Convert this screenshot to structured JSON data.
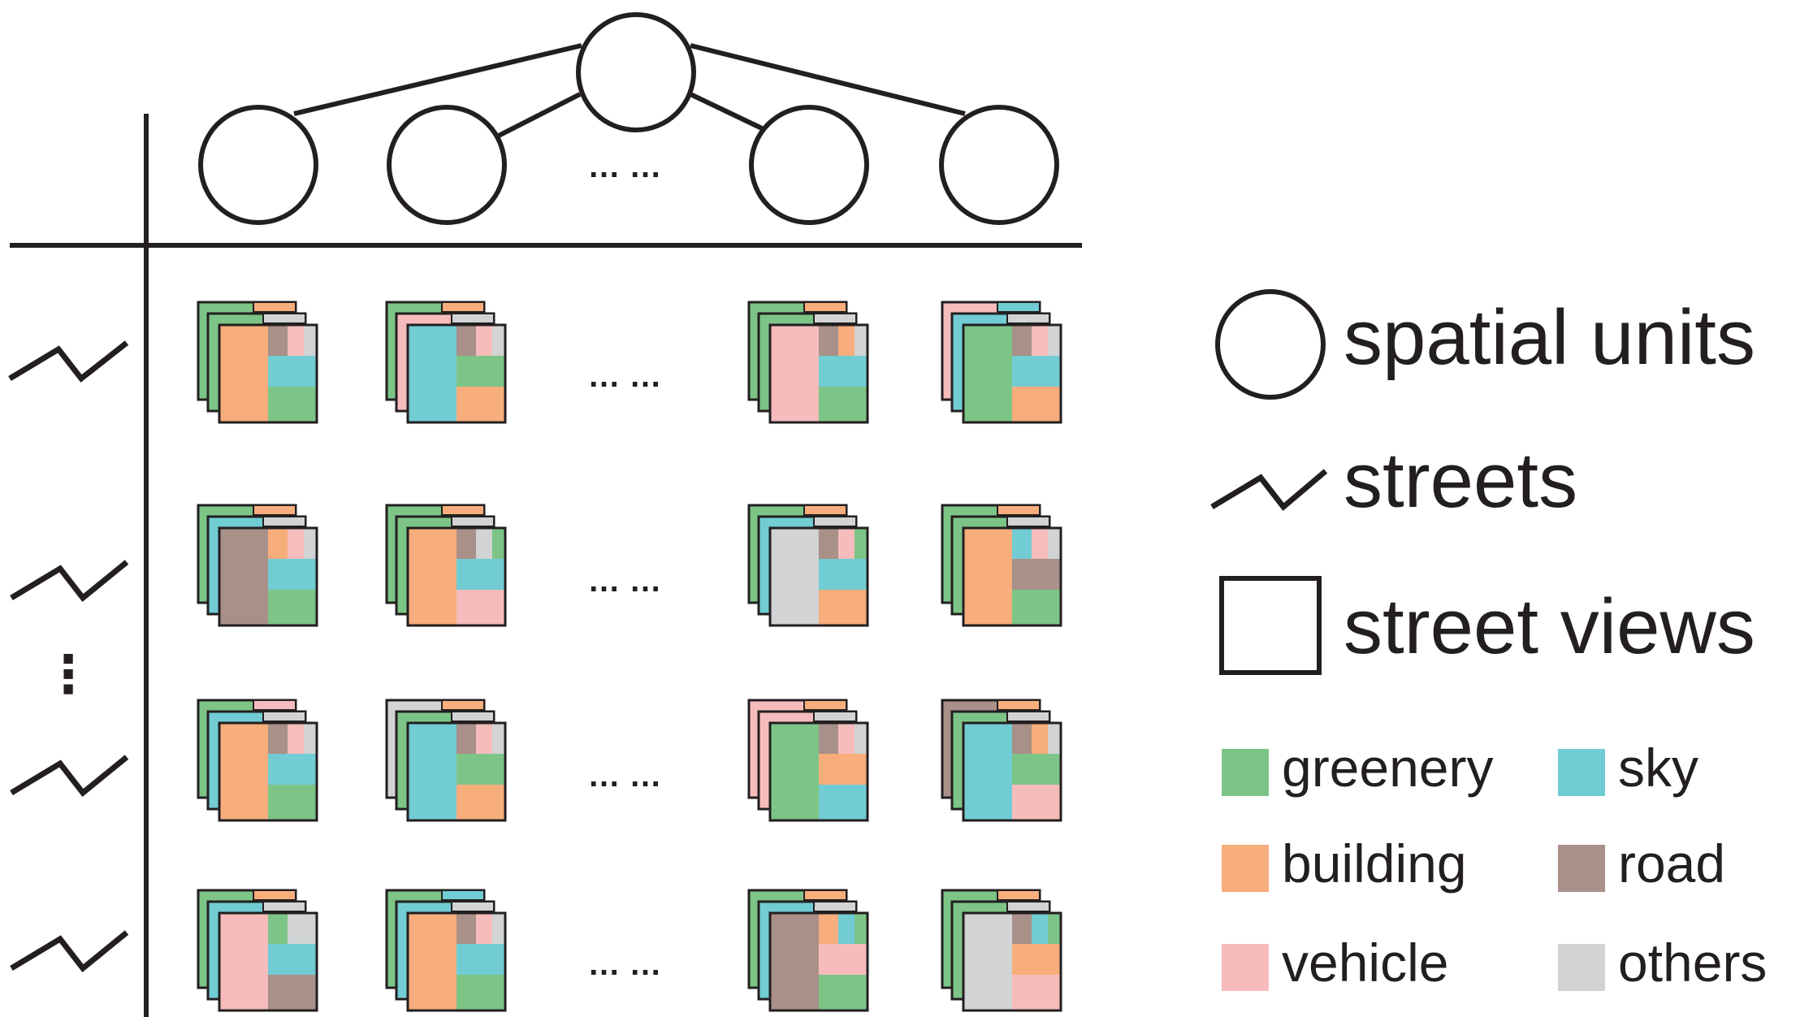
{
  "colors": {
    "ink": "#231f20",
    "greenery": "#7dc487",
    "building": "#f7ad7c",
    "vehicle": "#f6bcbc",
    "sky": "#71ccd4",
    "road": "#a99088",
    "others": "#d1d3d4"
  },
  "tree": {
    "ellipsis": "… …",
    "leaf_count_shown": 4
  },
  "grid": {
    "rows_shown": 4,
    "row_ellipsis": "⋮",
    "column_ellipsis": "… …",
    "stacks": [
      [
        {
          "back": [
            "greenery",
            "building"
          ],
          "mid": [
            "greenery",
            "others"
          ],
          "front": [
            "building",
            "road",
            "vehicle",
            "others",
            "sky",
            "greenery"
          ]
        },
        {
          "back": [
            "greenery",
            "building"
          ],
          "mid": [
            "vehicle",
            "others"
          ],
          "front": [
            "sky",
            "road",
            "vehicle",
            "others",
            "greenery",
            "building"
          ]
        },
        {
          "back": [
            "greenery",
            "building"
          ],
          "mid": [
            "greenery",
            "others"
          ],
          "front": [
            "vehicle",
            "road",
            "building",
            "others",
            "sky",
            "greenery"
          ]
        },
        {
          "back": [
            "vehicle",
            "sky"
          ],
          "mid": [
            "sky",
            "others"
          ],
          "front": [
            "greenery",
            "road",
            "vehicle",
            "others",
            "sky",
            "building"
          ]
        }
      ],
      [
        {
          "back": [
            "greenery",
            "building"
          ],
          "mid": [
            "sky",
            "others"
          ],
          "front": [
            "road",
            "building",
            "vehicle",
            "others",
            "sky",
            "greenery"
          ]
        },
        {
          "back": [
            "greenery",
            "building"
          ],
          "mid": [
            "greenery",
            "others"
          ],
          "front": [
            "building",
            "road",
            "others",
            "greenery",
            "sky",
            "vehicle"
          ]
        },
        {
          "back": [
            "greenery",
            "building"
          ],
          "mid": [
            "sky",
            "others"
          ],
          "front": [
            "others",
            "road",
            "vehicle",
            "greenery",
            "sky",
            "building"
          ]
        },
        {
          "back": [
            "greenery",
            "building"
          ],
          "mid": [
            "greenery",
            "others"
          ],
          "front": [
            "building",
            "sky",
            "vehicle",
            "others",
            "road",
            "greenery"
          ]
        }
      ],
      [
        {
          "back": [
            "greenery",
            "vehicle"
          ],
          "mid": [
            "sky",
            "others"
          ],
          "front": [
            "building",
            "road",
            "vehicle",
            "others",
            "sky",
            "greenery"
          ]
        },
        {
          "back": [
            "others",
            "building"
          ],
          "mid": [
            "greenery",
            "others"
          ],
          "front": [
            "sky",
            "road",
            "vehicle",
            "others",
            "greenery",
            "building"
          ]
        },
        {
          "back": [
            "vehicle",
            "building"
          ],
          "mid": [
            "vehicle",
            "others"
          ],
          "front": [
            "greenery",
            "road",
            "vehicle",
            "others",
            "building",
            "sky"
          ]
        },
        {
          "back": [
            "road",
            "building"
          ],
          "mid": [
            "greenery",
            "others"
          ],
          "front": [
            "sky",
            "road",
            "building",
            "others",
            "greenery",
            "vehicle"
          ]
        }
      ],
      [
        {
          "back": [
            "greenery",
            "building"
          ],
          "mid": [
            "sky",
            "others"
          ],
          "front": [
            "vehicle",
            "greenery",
            "others",
            "others",
            "sky",
            "road"
          ]
        },
        {
          "back": [
            "greenery",
            "sky"
          ],
          "mid": [
            "sky",
            "others"
          ],
          "front": [
            "building",
            "road",
            "vehicle",
            "others",
            "sky",
            "greenery"
          ]
        },
        {
          "back": [
            "greenery",
            "building"
          ],
          "mid": [
            "sky",
            "others"
          ],
          "front": [
            "road",
            "building",
            "sky",
            "greenery",
            "vehicle",
            "greenery"
          ]
        },
        {
          "back": [
            "greenery",
            "building"
          ],
          "mid": [
            "greenery",
            "others"
          ],
          "front": [
            "others",
            "road",
            "sky",
            "greenery",
            "building",
            "vehicle"
          ]
        }
      ]
    ]
  },
  "legend": {
    "spatial_units": "spatial units",
    "streets": "streets",
    "street_views": "street views",
    "classes": [
      {
        "key": "greenery",
        "label": "greenery"
      },
      {
        "key": "sky",
        "label": "sky"
      },
      {
        "key": "building",
        "label": "building"
      },
      {
        "key": "road",
        "label": "road"
      },
      {
        "key": "vehicle",
        "label": "vehicle"
      },
      {
        "key": "others",
        "label": "others"
      }
    ]
  }
}
